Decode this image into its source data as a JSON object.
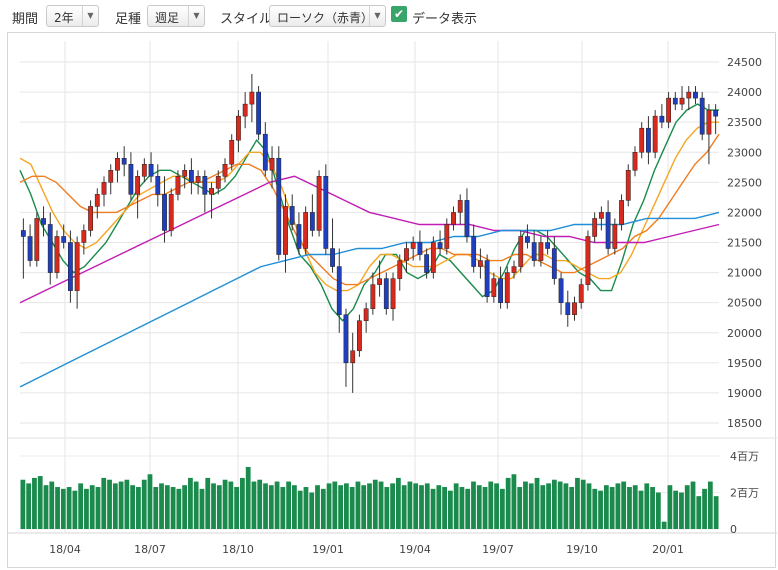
{
  "toolbar": {
    "period_label": "期間",
    "period_value": "2年",
    "foot_label": "足種",
    "foot_value": "週足",
    "style_label": "スタイル",
    "style_value": "ローソク（赤青）",
    "show_data_label": "データ表示",
    "show_data_checked": true
  },
  "colors": {
    "up": "#d62a1e",
    "down": "#1f3fbf",
    "volume": "#1a8b4c",
    "ma_short": "#1a8b4c",
    "ma_mid": "#f4a623",
    "ma_mid2": "#ef7d22",
    "ma_long": "#c21cb5",
    "ma_longest": "#1e8fd8"
  },
  "chart_data": [
    {
      "type": "candlestick",
      "y_axis_ticks": [
        "24500",
        "24000",
        "23500",
        "23000",
        "22500",
        "22000",
        "21500",
        "21000",
        "20500",
        "20000",
        "19500",
        "19000",
        "18500"
      ],
      "ylim": [
        18500,
        24500
      ],
      "x_tick_labels": [
        "18/04",
        "18/07",
        "18/10",
        "19/01",
        "19/04",
        "19/07",
        "19/10",
        "20/01"
      ],
      "candles": [
        [
          21700,
          21900,
          20900,
          21600
        ],
        [
          21600,
          21800,
          21100,
          21200
        ],
        [
          21200,
          22000,
          21100,
          21900
        ],
        [
          21900,
          22100,
          21600,
          21800
        ],
        [
          21800,
          22000,
          20800,
          21000
        ],
        [
          21000,
          21700,
          20900,
          21600
        ],
        [
          21600,
          21800,
          21400,
          21500
        ],
        [
          21500,
          21700,
          20500,
          20700
        ],
        [
          20700,
          21600,
          20400,
          21500
        ],
        [
          21500,
          21800,
          21300,
          21700
        ],
        [
          21700,
          22200,
          21600,
          22100
        ],
        [
          22100,
          22400,
          21900,
          22300
        ],
        [
          22300,
          22600,
          22100,
          22500
        ],
        [
          22500,
          22800,
          22300,
          22700
        ],
        [
          22700,
          23000,
          22500,
          22900
        ],
        [
          22900,
          23100,
          22600,
          22800
        ],
        [
          22800,
          23000,
          22200,
          22300
        ],
        [
          22300,
          22700,
          21900,
          22600
        ],
        [
          22600,
          22900,
          22500,
          22800
        ],
        [
          22800,
          23000,
          22500,
          22600
        ],
        [
          22600,
          22800,
          22100,
          22300
        ],
        [
          22300,
          22600,
          21500,
          21700
        ],
        [
          21700,
          22400,
          21600,
          22300
        ],
        [
          22300,
          22700,
          22200,
          22600
        ],
        [
          22600,
          22800,
          22400,
          22700
        ],
        [
          22700,
          22900,
          22300,
          22500
        ],
        [
          22500,
          22700,
          22300,
          22600
        ],
        [
          22600,
          22700,
          22000,
          22300
        ],
        [
          22300,
          22500,
          21900,
          22400
        ],
        [
          22400,
          22700,
          22300,
          22600
        ],
        [
          22600,
          22900,
          22500,
          22800
        ],
        [
          22800,
          23300,
          22700,
          23200
        ],
        [
          23200,
          23700,
          23000,
          23600
        ],
        [
          23600,
          24000,
          23400,
          23800
        ],
        [
          23800,
          24300,
          23500,
          24000
        ],
        [
          24000,
          24100,
          23200,
          23300
        ],
        [
          23300,
          23500,
          22600,
          22700
        ],
        [
          22700,
          23100,
          22400,
          22900
        ],
        [
          22900,
          23100,
          21200,
          21300
        ],
        [
          21300,
          22300,
          21000,
          22100
        ],
        [
          22100,
          22300,
          21700,
          21800
        ],
        [
          21800,
          22000,
          21300,
          21400
        ],
        [
          21400,
          22100,
          21300,
          22000
        ],
        [
          22000,
          22300,
          21600,
          21700
        ],
        [
          21700,
          22700,
          21600,
          22600
        ],
        [
          22600,
          22800,
          21300,
          21400
        ],
        [
          21400,
          21900,
          21000,
          21100
        ],
        [
          21100,
          21400,
          20000,
          20300
        ],
        [
          20300,
          20400,
          19100,
          19500
        ],
        [
          19500,
          20000,
          19000,
          19700
        ],
        [
          19700,
          20300,
          19600,
          20200
        ],
        [
          20200,
          20500,
          20000,
          20400
        ],
        [
          20400,
          21000,
          20300,
          20800
        ],
        [
          20800,
          21200,
          20600,
          20900
        ],
        [
          20900,
          21000,
          20300,
          20400
        ],
        [
          20400,
          21000,
          20200,
          20900
        ],
        [
          20900,
          21300,
          20700,
          21200
        ],
        [
          21200,
          21500,
          21000,
          21400
        ],
        [
          21400,
          21600,
          21200,
          21500
        ],
        [
          21500,
          21700,
          21200,
          21300
        ],
        [
          21300,
          21400,
          20900,
          21000
        ],
        [
          21000,
          21600,
          20900,
          21500
        ],
        [
          21500,
          21700,
          21300,
          21400
        ],
        [
          21400,
          21900,
          21300,
          21800
        ],
        [
          21800,
          22100,
          21700,
          22000
        ],
        [
          22000,
          22300,
          21800,
          22200
        ],
        [
          22200,
          22400,
          21500,
          21600
        ],
        [
          21600,
          21800,
          21000,
          21100
        ],
        [
          21100,
          21400,
          20900,
          21200
        ],
        [
          21200,
          21300,
          20500,
          20600
        ],
        [
          20600,
          21000,
          20500,
          20900
        ],
        [
          20900,
          21100,
          20400,
          20500
        ],
        [
          20500,
          21100,
          20400,
          21000
        ],
        [
          21000,
          21200,
          20900,
          21100
        ],
        [
          21100,
          21700,
          21000,
          21600
        ],
        [
          21600,
          21800,
          21400,
          21500
        ],
        [
          21500,
          21700,
          21100,
          21200
        ],
        [
          21200,
          21600,
          21100,
          21500
        ],
        [
          21500,
          21700,
          21300,
          21400
        ],
        [
          21400,
          21600,
          20800,
          20900
        ],
        [
          20900,
          21000,
          20300,
          20500
        ],
        [
          20500,
          20700,
          20100,
          20300
        ],
        [
          20300,
          20600,
          20200,
          20500
        ],
        [
          20500,
          20900,
          20400,
          20800
        ],
        [
          20800,
          21700,
          20700,
          21600
        ],
        [
          21600,
          22000,
          21500,
          21900
        ],
        [
          21900,
          22100,
          21700,
          22000
        ],
        [
          22000,
          22200,
          21300,
          21400
        ],
        [
          21400,
          21900,
          21300,
          21800
        ],
        [
          21800,
          22300,
          21700,
          22200
        ],
        [
          22200,
          22800,
          22100,
          22700
        ],
        [
          22700,
          23100,
          22600,
          23000
        ],
        [
          23000,
          23500,
          22900,
          23400
        ],
        [
          23400,
          23600,
          22800,
          23000
        ],
        [
          23000,
          23700,
          22900,
          23600
        ],
        [
          23600,
          23800,
          23400,
          23500
        ],
        [
          23500,
          24000,
          23400,
          23900
        ],
        [
          23900,
          24000,
          23700,
          23800
        ],
        [
          23800,
          24100,
          23700,
          23900
        ],
        [
          23900,
          24100,
          23700,
          24000
        ],
        [
          24000,
          24100,
          23800,
          23900
        ],
        [
          23900,
          24000,
          23200,
          23300
        ],
        [
          23300,
          23800,
          22800,
          23700
        ],
        [
          23700,
          23800,
          23300,
          23600
        ]
      ],
      "ma_series": [
        {
          "key": "ma_short",
          "values": [
            22700,
            22300,
            21800,
            21500,
            21200,
            21000,
            21100,
            21300,
            21500,
            21800,
            22100,
            22400,
            22600,
            22700,
            22700,
            22600,
            22500,
            22400,
            22300,
            22400,
            22600,
            22900,
            23200,
            23000,
            22400,
            21800,
            21300,
            21100,
            20800,
            20400,
            20200,
            20400,
            20800,
            21000,
            21300,
            21300,
            21000,
            20900,
            21000,
            21300,
            21200,
            21000,
            20800,
            20600,
            20700,
            21000,
            21400,
            21700,
            21700,
            21600,
            21400,
            21200,
            21000,
            20900,
            20700,
            20700,
            21200,
            21800,
            22200,
            22700,
            23100,
            23500,
            23700,
            23800,
            23700,
            23700
          ]
        },
        {
          "key": "ma_mid",
          "values": [
            22900,
            22800,
            22400,
            22000,
            21700,
            21500,
            21400,
            21500,
            21700,
            21900,
            22100,
            22300,
            22400,
            22500,
            22600,
            22600,
            22500,
            22500,
            22500,
            22600,
            22800,
            23000,
            23000,
            22800,
            22400,
            21900,
            21400,
            21000,
            20800,
            20700,
            20700,
            20800,
            21100,
            21300,
            21300,
            21200,
            21100,
            21100,
            21100,
            21200,
            21300,
            21300,
            21200,
            21000,
            20900,
            20900,
            21100,
            21300,
            21300,
            21200,
            21200,
            21100,
            21000,
            20900,
            20900,
            21000,
            21300,
            21700,
            22100,
            22500,
            22900,
            23200,
            23400,
            23500,
            23500
          ]
        },
        {
          "key": "ma_mid2",
          "values": [
            22500,
            22600,
            22600,
            22500,
            22300,
            22100,
            22000,
            22000,
            22000,
            22100,
            22200,
            22300,
            22300,
            22400,
            22500,
            22500,
            22600,
            22700,
            22800,
            22800,
            22700,
            22400,
            22000,
            21600,
            21300,
            21100,
            20900,
            20800,
            20800,
            20900,
            21000,
            21100,
            21200,
            21300,
            21400,
            21400,
            21300,
            21300,
            21300,
            21200,
            21200,
            21300,
            21300,
            21200,
            21100,
            21000,
            21000,
            21100,
            21200,
            21300,
            21400,
            21600,
            21700,
            21900,
            22200,
            22500,
            22800,
            23000,
            23300
          ]
        },
        {
          "key": "ma_long",
          "values": [
            20500,
            20700,
            20900,
            21100,
            21300,
            21500,
            21700,
            21900,
            22100,
            22300,
            22500,
            22600,
            22400,
            22200,
            22000,
            21900,
            21800,
            21800,
            21800,
            21700,
            21700,
            21600,
            21600,
            21500,
            21500,
            21500,
            21600,
            21700,
            21800
          ]
        },
        {
          "key": "ma_longest",
          "values": [
            19100,
            19300,
            19500,
            19700,
            19900,
            20100,
            20300,
            20500,
            20700,
            20900,
            21100,
            21200,
            21300,
            21300,
            21400,
            21400,
            21500,
            21500,
            21600,
            21600,
            21700,
            21700,
            21700,
            21800,
            21800,
            21800,
            21900,
            21900,
            21900,
            22000
          ]
        }
      ]
    },
    {
      "type": "bar",
      "title": "volume",
      "y_axis_ticks": [
        "4百万",
        "2百万",
        "0"
      ],
      "ylim": [
        0,
        4
      ],
      "values": [
        2.7,
        2.5,
        2.8,
        2.9,
        2.4,
        2.6,
        2.3,
        2.2,
        2.3,
        2.1,
        2.5,
        2.2,
        2.4,
        2.3,
        2.8,
        2.7,
        2.5,
        2.6,
        2.7,
        2.4,
        2.3,
        2.7,
        3.0,
        2.3,
        2.5,
        2.4,
        2.3,
        2.2,
        2.4,
        2.8,
        2.6,
        2.2,
        2.8,
        2.5,
        2.4,
        2.7,
        2.6,
        2.3,
        2.8,
        3.4,
        2.6,
        2.7,
        2.5,
        2.4,
        2.6,
        2.3,
        2.6,
        2.4,
        2.1,
        2.3,
        2.0,
        2.4,
        2.2,
        2.5,
        2.6,
        2.4,
        2.5,
        2.3,
        2.6,
        2.4,
        2.5,
        2.7,
        2.6,
        2.3,
        2.5,
        2.8,
        2.4,
        2.6,
        2.5,
        2.4,
        2.5,
        2.2,
        2.4,
        2.3,
        2.1,
        2.5,
        2.3,
        2.2,
        2.6,
        2.4,
        2.3,
        2.6,
        2.5,
        2.2,
        2.8,
        3.0,
        2.3,
        2.6,
        2.5,
        2.8,
        2.4,
        2.5,
        2.7,
        2.6,
        2.5,
        2.3,
        2.8,
        2.7,
        2.5,
        2.2,
        2.1,
        2.4,
        2.3,
        2.5,
        2.6,
        2.3,
        2.4,
        2.1,
        2.5,
        2.3,
        2.0,
        0.4,
        2.4,
        2.1,
        2.0,
        2.4,
        2.6,
        1.8,
        2.2,
        2.6,
        1.8
      ]
    }
  ]
}
